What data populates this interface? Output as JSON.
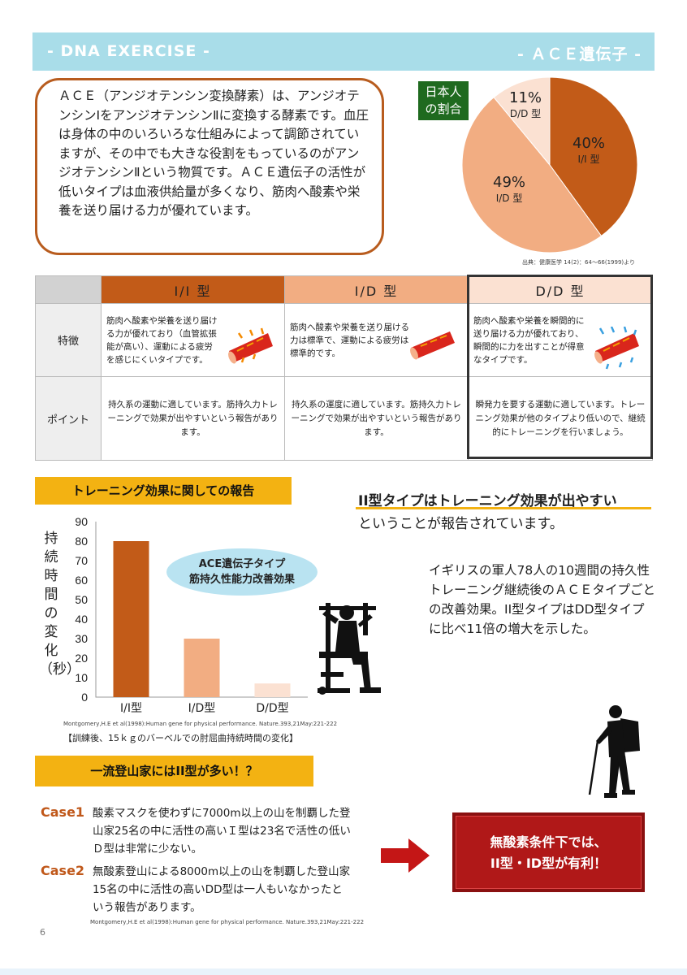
{
  "header": {
    "left": "- DNA EXERCISE -",
    "right": "- ＡＣＥ遺伝子 -"
  },
  "intro": {
    "text": "ＡＣＥ（アンジオテンシン変換酵素）は、アンジオテンシンⅠをアンジオテンシンⅡに変換する酵素です。血圧は身体の中のいろいろな仕組みによって調節されていますが、その中でも大きな役割をもっているのがアンジオテンシンⅡという物質です。ＡＣＥ遺伝子の活性が低いタイプは血液供給量が多くなり、筋肉へ酸素や栄養を送り届ける力が優れています。"
  },
  "pie": {
    "label_line1": "日本人",
    "label_line2": "の割合",
    "slices": [
      {
        "pct": "40%",
        "type": "I/I 型",
        "value": 40,
        "color": "#c25b18"
      },
      {
        "pct": "49%",
        "type": "I/D 型",
        "value": 49,
        "color": "#f2ad82"
      },
      {
        "pct": "11%",
        "type": "D/D 型",
        "value": 11,
        "color": "#fbe1d2"
      }
    ],
    "source": "出典：健康医学 14(2)：64～66(1999)より"
  },
  "table": {
    "headers": [
      "I/I 型",
      "I/D 型",
      "D/D 型"
    ],
    "row1_label": "特徴",
    "row2_label": "ポイント",
    "features": [
      "筋肉へ酸素や栄養を送り届ける力が優れており（血管拡張能が高い）、運動による疲労を感じにくいタイプです。",
      "筋肉へ酸素や栄養を送り届ける力は標準で、運動による疲労は標準的です。",
      "筋肉へ酸素や栄養を瞬間的に送り届ける力が優れており、瞬間的に力を出すことが得意なタイプです。"
    ],
    "points": [
      "持久系の運動に適しています。筋持久力トレーニングで効果が出やすいという報告があります。",
      "持久系の運度に適しています。筋持久力トレーニングで効果が出やすいという報告があります。",
      "瞬発力を要する運動に適しています。トレーニング効果が他のタイプより低いので、継続的にトレーニングを行いましょう。"
    ]
  },
  "section1": {
    "banner": "トレーニング効果に関しての報告",
    "headline_strong": "II型タイプはトレーニング効果が出やすい",
    "headline_sub": "ということが報告されています。",
    "study_text": "イギリスの軍人78人の10週間の持久性トレーニング継続後のＡＣＥタイプごとの改善効果。II型タイプはDD型タイプに比べ11倍の増大を示した。",
    "bubble_line1": "ACE遺伝子タイプ",
    "bubble_line2": "筋持久性能力改善効果",
    "yaxis_title": "持続時間の変化（秒）",
    "cite": "Montgomery,H.E et al(1998):Human gene for physical performance. Nature.393,21May:221-222",
    "caption": "【訓練後、15ｋｇのバーベルでの肘屈曲持続時間の変化】"
  },
  "chart_data": {
    "type": "bar",
    "categories": [
      "I/I型",
      "I/D型",
      "D/D型"
    ],
    "values": [
      80,
      30,
      7
    ],
    "colors": [
      "#c25b18",
      "#f2ad82",
      "#fbe1d2"
    ],
    "ylim": [
      0,
      90
    ],
    "yticks": [
      0,
      10,
      20,
      30,
      40,
      50,
      60,
      70,
      80,
      90
    ],
    "ylabel": "持続時間の変化（秒）",
    "grid": false
  },
  "section2": {
    "banner": "一流登山家にはII型が多い！？",
    "case1_label": "Case1",
    "case1_text": "酸素マスクを使わずに7000m以上の山を制覇した登山家25名の中に活性の高いＩ型は23名で活性の低いＤ型は非常に少ない。",
    "case2_label": "Case2",
    "case2_text": "無酸素登山による8000m以上の山を制覇した登山家15名の中に活性の高いDD型は一人もいなかったという報告があります。",
    "cite": "Montgomery,H.E et al(1998):Human gene for physical performance. Nature.393,21May:221-222",
    "result_line1": "無酸素条件下では、",
    "result_line2": "II型・ID型が有利！"
  },
  "page_number": "6"
}
